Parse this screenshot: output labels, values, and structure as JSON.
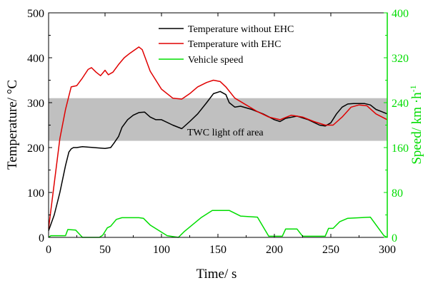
{
  "chart_data": {
    "type": "line",
    "title": "",
    "xlabel": "Time/ s",
    "ylabel_left": "Temperature/  °C",
    "ylabel_right": "Speed/ km ·h",
    "ylabel_right_sup": "-1",
    "xlim": [
      0,
      300
    ],
    "ylim_left": [
      0,
      500
    ],
    "ylim_right": [
      0,
      400
    ],
    "x_ticks": [
      "0",
      "50",
      "100",
      "150",
      "200",
      "250",
      "300"
    ],
    "y_left_ticks": [
      "0",
      "100",
      "200",
      "300",
      "400",
      "500"
    ],
    "y_right_ticks": [
      "0",
      "80",
      "160",
      "240",
      "320",
      "400"
    ],
    "legend_position": "top-right",
    "band": {
      "label": "TWC light off area",
      "y_range": [
        215,
        310
      ],
      "color": "#c0c0c0"
    },
    "colors": {
      "without_ehc": "#000000",
      "with_ehc": "#e00000",
      "speed": "#00dd00",
      "right_axis": "#00dd00"
    },
    "series": [
      {
        "name": "Temperature without EHC",
        "axis": "left",
        "x": [
          0,
          5,
          10,
          15,
          18,
          20,
          22,
          25,
          30,
          40,
          50,
          55,
          58,
          62,
          65,
          70,
          75,
          80,
          85,
          90,
          95,
          100,
          110,
          118,
          125,
          132,
          140,
          146,
          152,
          157,
          160,
          165,
          170,
          180,
          190,
          200,
          205,
          210,
          220,
          230,
          240,
          245,
          250,
          255,
          260,
          265,
          270,
          280,
          285,
          290,
          295,
          300
        ],
        "y": [
          15,
          50,
          100,
          160,
          190,
          197,
          200,
          200,
          202,
          200,
          198,
          200,
          210,
          225,
          245,
          262,
          272,
          278,
          279,
          268,
          262,
          262,
          250,
          242,
          258,
          275,
          300,
          320,
          325,
          318,
          300,
          290,
          292,
          285,
          275,
          262,
          258,
          265,
          270,
          262,
          250,
          248,
          255,
          275,
          290,
          297,
          298,
          298,
          295,
          285,
          280,
          275
        ]
      },
      {
        "name": "Temperature with EHC",
        "axis": "left",
        "x": [
          0,
          5,
          10,
          15,
          20,
          25,
          30,
          35,
          38,
          42,
          46,
          50,
          53,
          57,
          62,
          67,
          72,
          80,
          83,
          90,
          100,
          110,
          118,
          125,
          132,
          140,
          146,
          152,
          157,
          165,
          175,
          185,
          195,
          205,
          215,
          225,
          235,
          245,
          252,
          260,
          268,
          275,
          282,
          290,
          300
        ],
        "y": [
          20,
          120,
          220,
          285,
          335,
          338,
          355,
          374,
          378,
          368,
          360,
          372,
          362,
          368,
          385,
          400,
          410,
          424,
          418,
          370,
          330,
          310,
          308,
          320,
          335,
          345,
          350,
          347,
          335,
          310,
          295,
          280,
          268,
          262,
          272,
          268,
          258,
          250,
          250,
          268,
          290,
          295,
          293,
          275,
          262
        ]
      },
      {
        "name": "Vehicle speed",
        "axis": "right",
        "x": [
          0,
          2,
          10,
          15,
          17,
          24,
          30,
          45,
          48,
          52,
          55,
          60,
          65,
          78,
          80,
          84,
          90,
          105,
          115,
          120,
          135,
          145,
          160,
          170,
          185,
          195,
          207,
          210,
          220,
          225,
          240,
          245,
          248,
          252,
          258,
          265,
          285,
          297,
          300
        ],
        "y": [
          0,
          3,
          3,
          3,
          14,
          13,
          0,
          0,
          4,
          17,
          20,
          32,
          35,
          35,
          35,
          34,
          22,
          3,
          0,
          10,
          35,
          48,
          48,
          38,
          36,
          2,
          2,
          15,
          15,
          2,
          2,
          2,
          16,
          16,
          28,
          34,
          36,
          3,
          0
        ]
      }
    ]
  }
}
